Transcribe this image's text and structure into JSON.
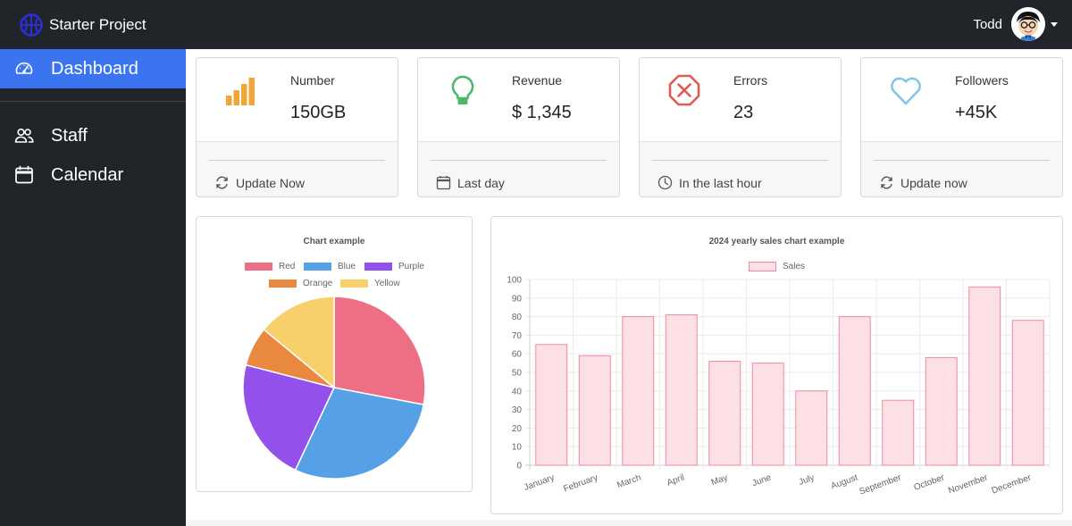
{
  "app": {
    "title": "Starter Project"
  },
  "user": {
    "name": "Todd"
  },
  "sidebar": {
    "items": [
      {
        "label": "Dashboard",
        "icon": "gauge-icon",
        "active": true
      },
      {
        "label": "Staff",
        "icon": "people-icon",
        "active": false
      },
      {
        "label": "Calendar",
        "icon": "calendar-icon",
        "active": false
      }
    ]
  },
  "cards": [
    {
      "label": "Number",
      "value": "150GB",
      "icon": "bar-chart-icon",
      "icon_color": "#f0a73a",
      "footer": "Update Now",
      "footer_icon": "refresh-icon"
    },
    {
      "label": "Revenue",
      "value": "$ 1,345",
      "icon": "lightbulb-icon",
      "icon_color": "#4cb86a",
      "footer": "Last day",
      "footer_icon": "calendar-icon"
    },
    {
      "label": "Errors",
      "value": "23",
      "icon": "error-octagon-icon",
      "icon_color": "#e05a50",
      "footer": "In the last hour",
      "footer_icon": "clock-icon"
    },
    {
      "label": "Followers",
      "value": "+45K",
      "icon": "heart-icon",
      "icon_color": "#7cc4e8",
      "footer": "Update now",
      "footer_icon": "refresh-icon"
    }
  ],
  "colors": {
    "topbar": "#212529",
    "accent": "#3b74f1"
  },
  "chart_data": [
    {
      "type": "pie",
      "title": "Chart example",
      "categories": [
        "Red",
        "Blue",
        "Purple",
        "Orange",
        "Yellow"
      ],
      "values": [
        28,
        29,
        22,
        7,
        14
      ],
      "colors": [
        "#ed6f85",
        "#56a0e5",
        "#9450ea",
        "#e8893f",
        "#f7cf6b"
      ],
      "legend": "top"
    },
    {
      "type": "bar",
      "title": "2024 yearly sales chart example",
      "categories": [
        "January",
        "February",
        "March",
        "April",
        "May",
        "June",
        "July",
        "August",
        "September",
        "October",
        "November",
        "December"
      ],
      "series": [
        {
          "name": "Sales",
          "values": [
            65,
            59,
            80,
            81,
            56,
            55,
            40,
            80,
            35,
            58,
            96,
            78
          ]
        }
      ],
      "ylim": [
        0,
        100
      ],
      "yticks": [
        0,
        10,
        20,
        30,
        40,
        50,
        60,
        70,
        80,
        90,
        100
      ],
      "grid": true,
      "legend": "top",
      "bar_fill": "#fde0e5",
      "bar_stroke": "#ef8a9c"
    }
  ]
}
